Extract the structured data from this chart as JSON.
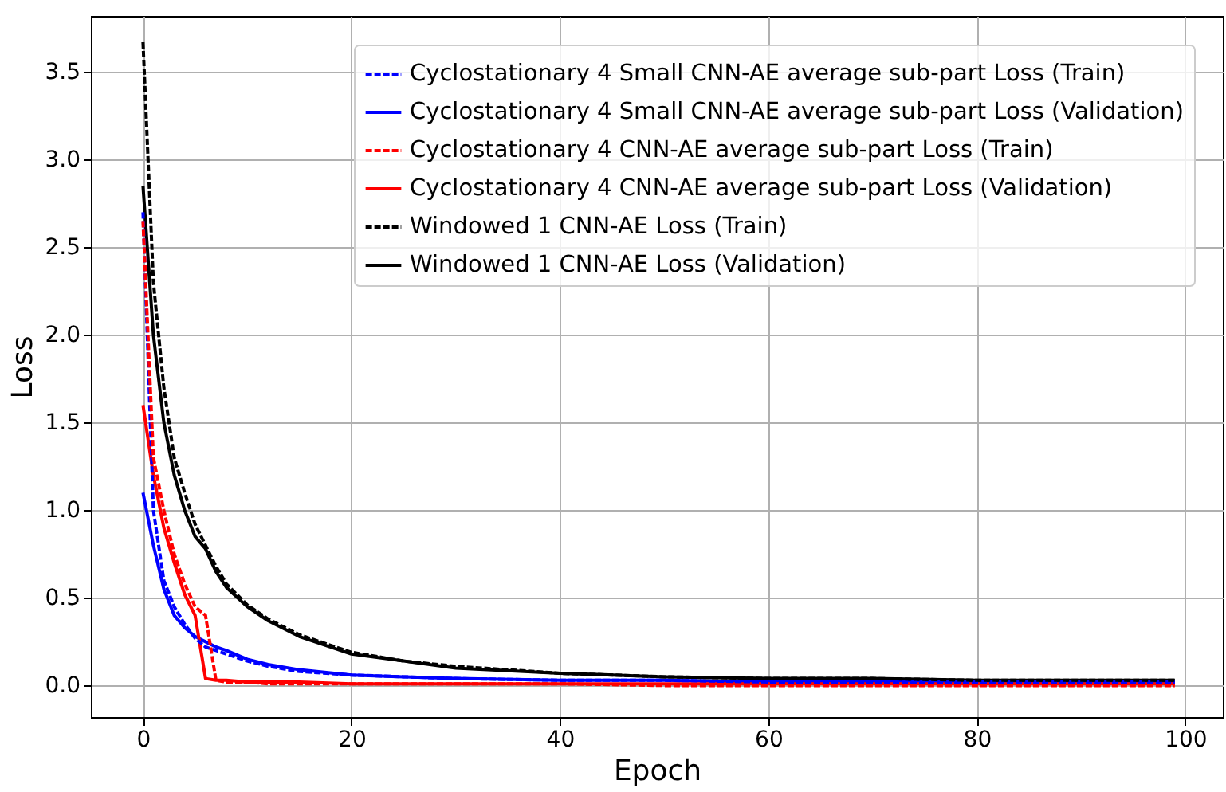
{
  "chart_data": {
    "type": "line",
    "xlabel": "Epoch",
    "ylabel": "Loss",
    "x": [
      0,
      1,
      2,
      3,
      4,
      5,
      6,
      7,
      8,
      10,
      12,
      15,
      20,
      25,
      30,
      40,
      50,
      60,
      70,
      80,
      90,
      99
    ],
    "series": [
      {
        "name": "Cyclostationary 4 Small CNN-AE average sub-part Loss (Train)",
        "color": "#0000ff",
        "line_style": "dashed",
        "values": [
          2.7,
          1.0,
          0.6,
          0.45,
          0.35,
          0.27,
          0.22,
          0.2,
          0.18,
          0.14,
          0.11,
          0.08,
          0.06,
          0.05,
          0.04,
          0.03,
          0.03,
          0.02,
          0.02,
          0.02,
          0.02,
          0.02
        ]
      },
      {
        "name": "Cyclostationary 4 Small CNN-AE average sub-part Loss (Validation)",
        "color": "#0000ff",
        "line_style": "solid",
        "values": [
          1.1,
          0.8,
          0.55,
          0.4,
          0.33,
          0.28,
          0.25,
          0.22,
          0.2,
          0.15,
          0.12,
          0.09,
          0.06,
          0.05,
          0.04,
          0.03,
          0.03,
          0.02,
          0.02,
          0.02,
          0.02,
          0.02
        ]
      },
      {
        "name": "Cyclostationary 4 CNN-AE average sub-part Loss (Train)",
        "color": "#ff0000",
        "line_style": "dashed",
        "values": [
          2.65,
          1.3,
          1.0,
          0.75,
          0.58,
          0.45,
          0.4,
          0.03,
          0.02,
          0.02,
          0.01,
          0.01,
          0.01,
          0.01,
          0.01,
          0.01,
          0.0,
          0.0,
          0.0,
          0.0,
          0.0,
          0.0
        ]
      },
      {
        "name": "Cyclostationary 4 CNN-AE average sub-part Loss (Validation)",
        "color": "#ff0000",
        "line_style": "solid",
        "values": [
          1.6,
          1.2,
          0.9,
          0.7,
          0.52,
          0.4,
          0.04,
          0.03,
          0.03,
          0.02,
          0.02,
          0.02,
          0.01,
          0.01,
          0.01,
          0.01,
          0.01,
          0.01,
          0.01,
          0.01,
          0.01,
          0.01
        ]
      },
      {
        "name": "Windowed 1 CNN-AE Loss (Train)",
        "color": "#000000",
        "line_style": "dashed",
        "values": [
          3.67,
          2.3,
          1.7,
          1.3,
          1.1,
          0.92,
          0.8,
          0.68,
          0.58,
          0.46,
          0.38,
          0.29,
          0.19,
          0.14,
          0.11,
          0.07,
          0.05,
          0.04,
          0.04,
          0.03,
          0.03,
          0.03
        ]
      },
      {
        "name": "Windowed 1 CNN-AE Loss (Validation)",
        "color": "#000000",
        "line_style": "solid",
        "values": [
          2.85,
          2.0,
          1.5,
          1.2,
          1.0,
          0.85,
          0.78,
          0.65,
          0.56,
          0.45,
          0.37,
          0.28,
          0.18,
          0.14,
          0.1,
          0.07,
          0.05,
          0.04,
          0.04,
          0.03,
          0.03,
          0.03
        ]
      }
    ],
    "xlim": [
      -5,
      103.6
    ],
    "xticks": [
      0,
      20,
      40,
      60,
      80,
      100
    ],
    "ylim": [
      -0.18,
      3.82
    ],
    "yticks": [
      {
        "value": 0,
        "label": "0.0"
      },
      {
        "value": 0.5,
        "label": "0.5"
      },
      {
        "value": 1,
        "label": "1.0"
      },
      {
        "value": 1.5,
        "label": "1.5"
      },
      {
        "value": 2,
        "label": "2.0"
      },
      {
        "value": 2.5,
        "label": "2.5"
      },
      {
        "value": 3,
        "label": "3.0"
      },
      {
        "value": 3.5,
        "label": "3.5"
      }
    ],
    "grid": true,
    "legend": "top right"
  }
}
